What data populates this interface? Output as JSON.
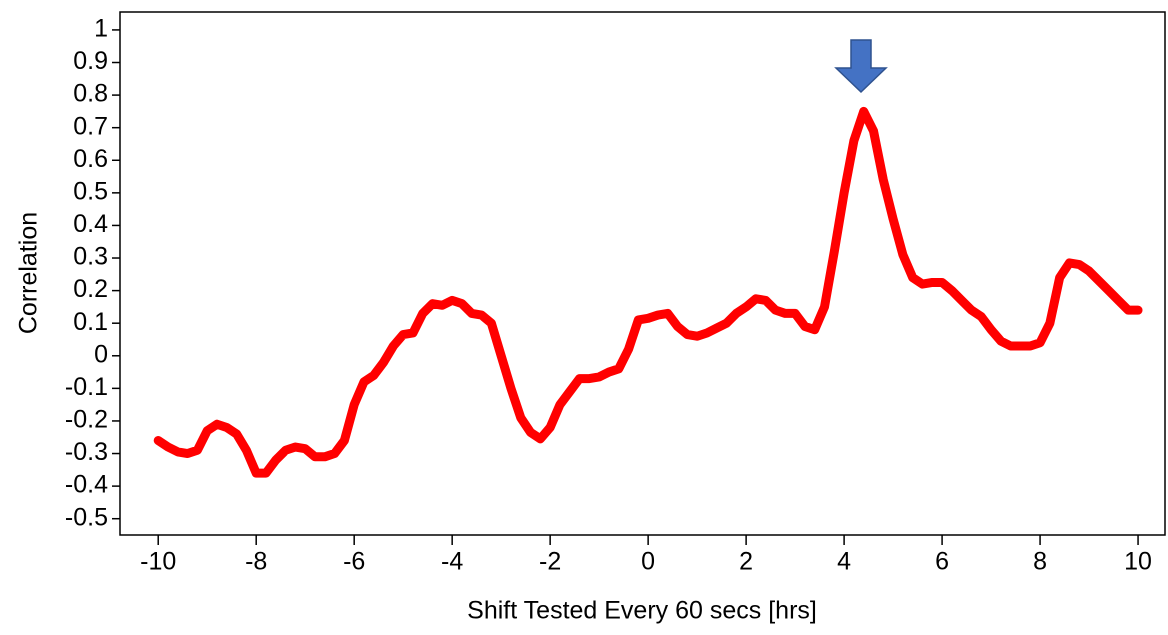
{
  "chart_data": {
    "type": "line",
    "x_label": "Shift Tested Every 60 secs [hrs]",
    "y_label": "Correlation",
    "x": [
      -10,
      -9.8,
      -9.6,
      -9.4,
      -9.2,
      -9,
      -8.8,
      -8.6,
      -8.4,
      -8.2,
      -8,
      -7.8,
      -7.6,
      -7.4,
      -7.2,
      -7,
      -6.8,
      -6.6,
      -6.4,
      -6.2,
      -6,
      -5.8,
      -5.6,
      -5.4,
      -5.2,
      -5,
      -4.8,
      -4.6,
      -4.4,
      -4.2,
      -4,
      -3.8,
      -3.6,
      -3.4,
      -3.2,
      -3,
      -2.8,
      -2.6,
      -2.4,
      -2.2,
      -2,
      -1.8,
      -1.6,
      -1.4,
      -1.2,
      -1,
      -0.8,
      -0.6,
      -0.4,
      -0.2,
      0,
      0.2,
      0.4,
      0.6,
      0.8,
      1,
      1.2,
      1.4,
      1.6,
      1.8,
      2,
      2.2,
      2.4,
      2.6,
      2.8,
      3,
      3.2,
      3.4,
      3.6,
      3.8,
      4,
      4.2,
      4.4,
      4.6,
      4.8,
      5,
      5.2,
      5.4,
      5.6,
      5.8,
      6,
      6.2,
      6.4,
      6.6,
      6.8,
      7,
      7.2,
      7.4,
      7.6,
      7.8,
      8,
      8.2,
      8.4,
      8.6,
      8.8,
      9,
      9.2,
      9.4,
      9.6,
      9.8,
      10
    ],
    "series": [
      {
        "color": "#ff0000",
        "values": [
          -0.26,
          -0.28,
          -0.295,
          -0.3,
          -0.29,
          -0.23,
          -0.21,
          -0.22,
          -0.24,
          -0.29,
          -0.36,
          -0.36,
          -0.32,
          -0.29,
          -0.28,
          -0.285,
          -0.31,
          -0.31,
          -0.3,
          -0.26,
          -0.15,
          -0.08,
          -0.06,
          -0.02,
          0.03,
          0.065,
          0.07,
          0.13,
          0.16,
          0.155,
          0.17,
          0.16,
          0.13,
          0.125,
          0.1,
          0.0,
          -0.1,
          -0.19,
          -0.235,
          -0.255,
          -0.22,
          -0.15,
          -0.11,
          -0.07,
          -0.07,
          -0.065,
          -0.05,
          -0.04,
          0.02,
          0.11,
          0.115,
          0.125,
          0.13,
          0.09,
          0.065,
          0.06,
          0.07,
          0.085,
          0.1,
          0.13,
          0.15,
          0.175,
          0.17,
          0.14,
          0.13,
          0.13,
          0.09,
          0.08,
          0.15,
          0.32,
          0.5,
          0.66,
          0.75,
          0.69,
          0.54,
          0.42,
          0.31,
          0.24,
          0.22,
          0.225,
          0.225,
          0.2,
          0.17,
          0.14,
          0.12,
          0.08,
          0.045,
          0.03,
          0.03,
          0.03,
          0.04,
          0.1,
          0.24,
          0.285,
          0.28,
          0.26,
          0.23,
          0.2,
          0.17,
          0.14,
          0.14
        ]
      }
    ],
    "xlim": [
      -10.78,
      10.55
    ],
    "ylim": [
      -0.55,
      1.055
    ],
    "xticks": [
      -10,
      -8,
      -6,
      -4,
      -2,
      0,
      2,
      4,
      6,
      8,
      10
    ],
    "yticks": [
      -0.5,
      -0.4,
      -0.3,
      -0.2,
      -0.1,
      0,
      0.1,
      0.2,
      0.3,
      0.4,
      0.5,
      0.6,
      0.7,
      0.8,
      0.9,
      1
    ]
  }
}
